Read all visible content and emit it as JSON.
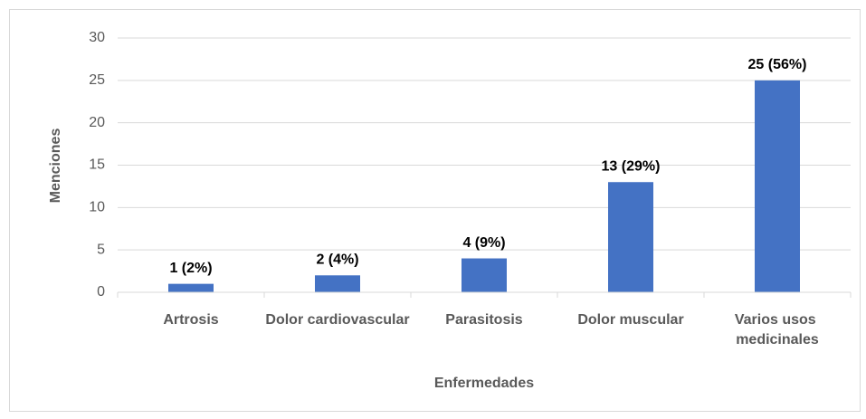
{
  "chart_data": {
    "type": "bar",
    "categories": [
      "Artrosis",
      "Dolor cardiovascular",
      "Parasitosis",
      "Dolor muscular",
      "Varios usos medicinales"
    ],
    "values": [
      1,
      2,
      4,
      13,
      25
    ],
    "value_labels": [
      "1 (2%)",
      "2 (4%)",
      "4 (9%)",
      "13 (29%)",
      "25 (56%)"
    ],
    "color": "#4472c4",
    "xlabel": "Enfermedades",
    "ylabel": "Menciones",
    "ylim": [
      0,
      30
    ],
    "yticks": [
      0,
      5,
      10,
      15,
      20,
      25,
      30
    ],
    "grid": true
  }
}
